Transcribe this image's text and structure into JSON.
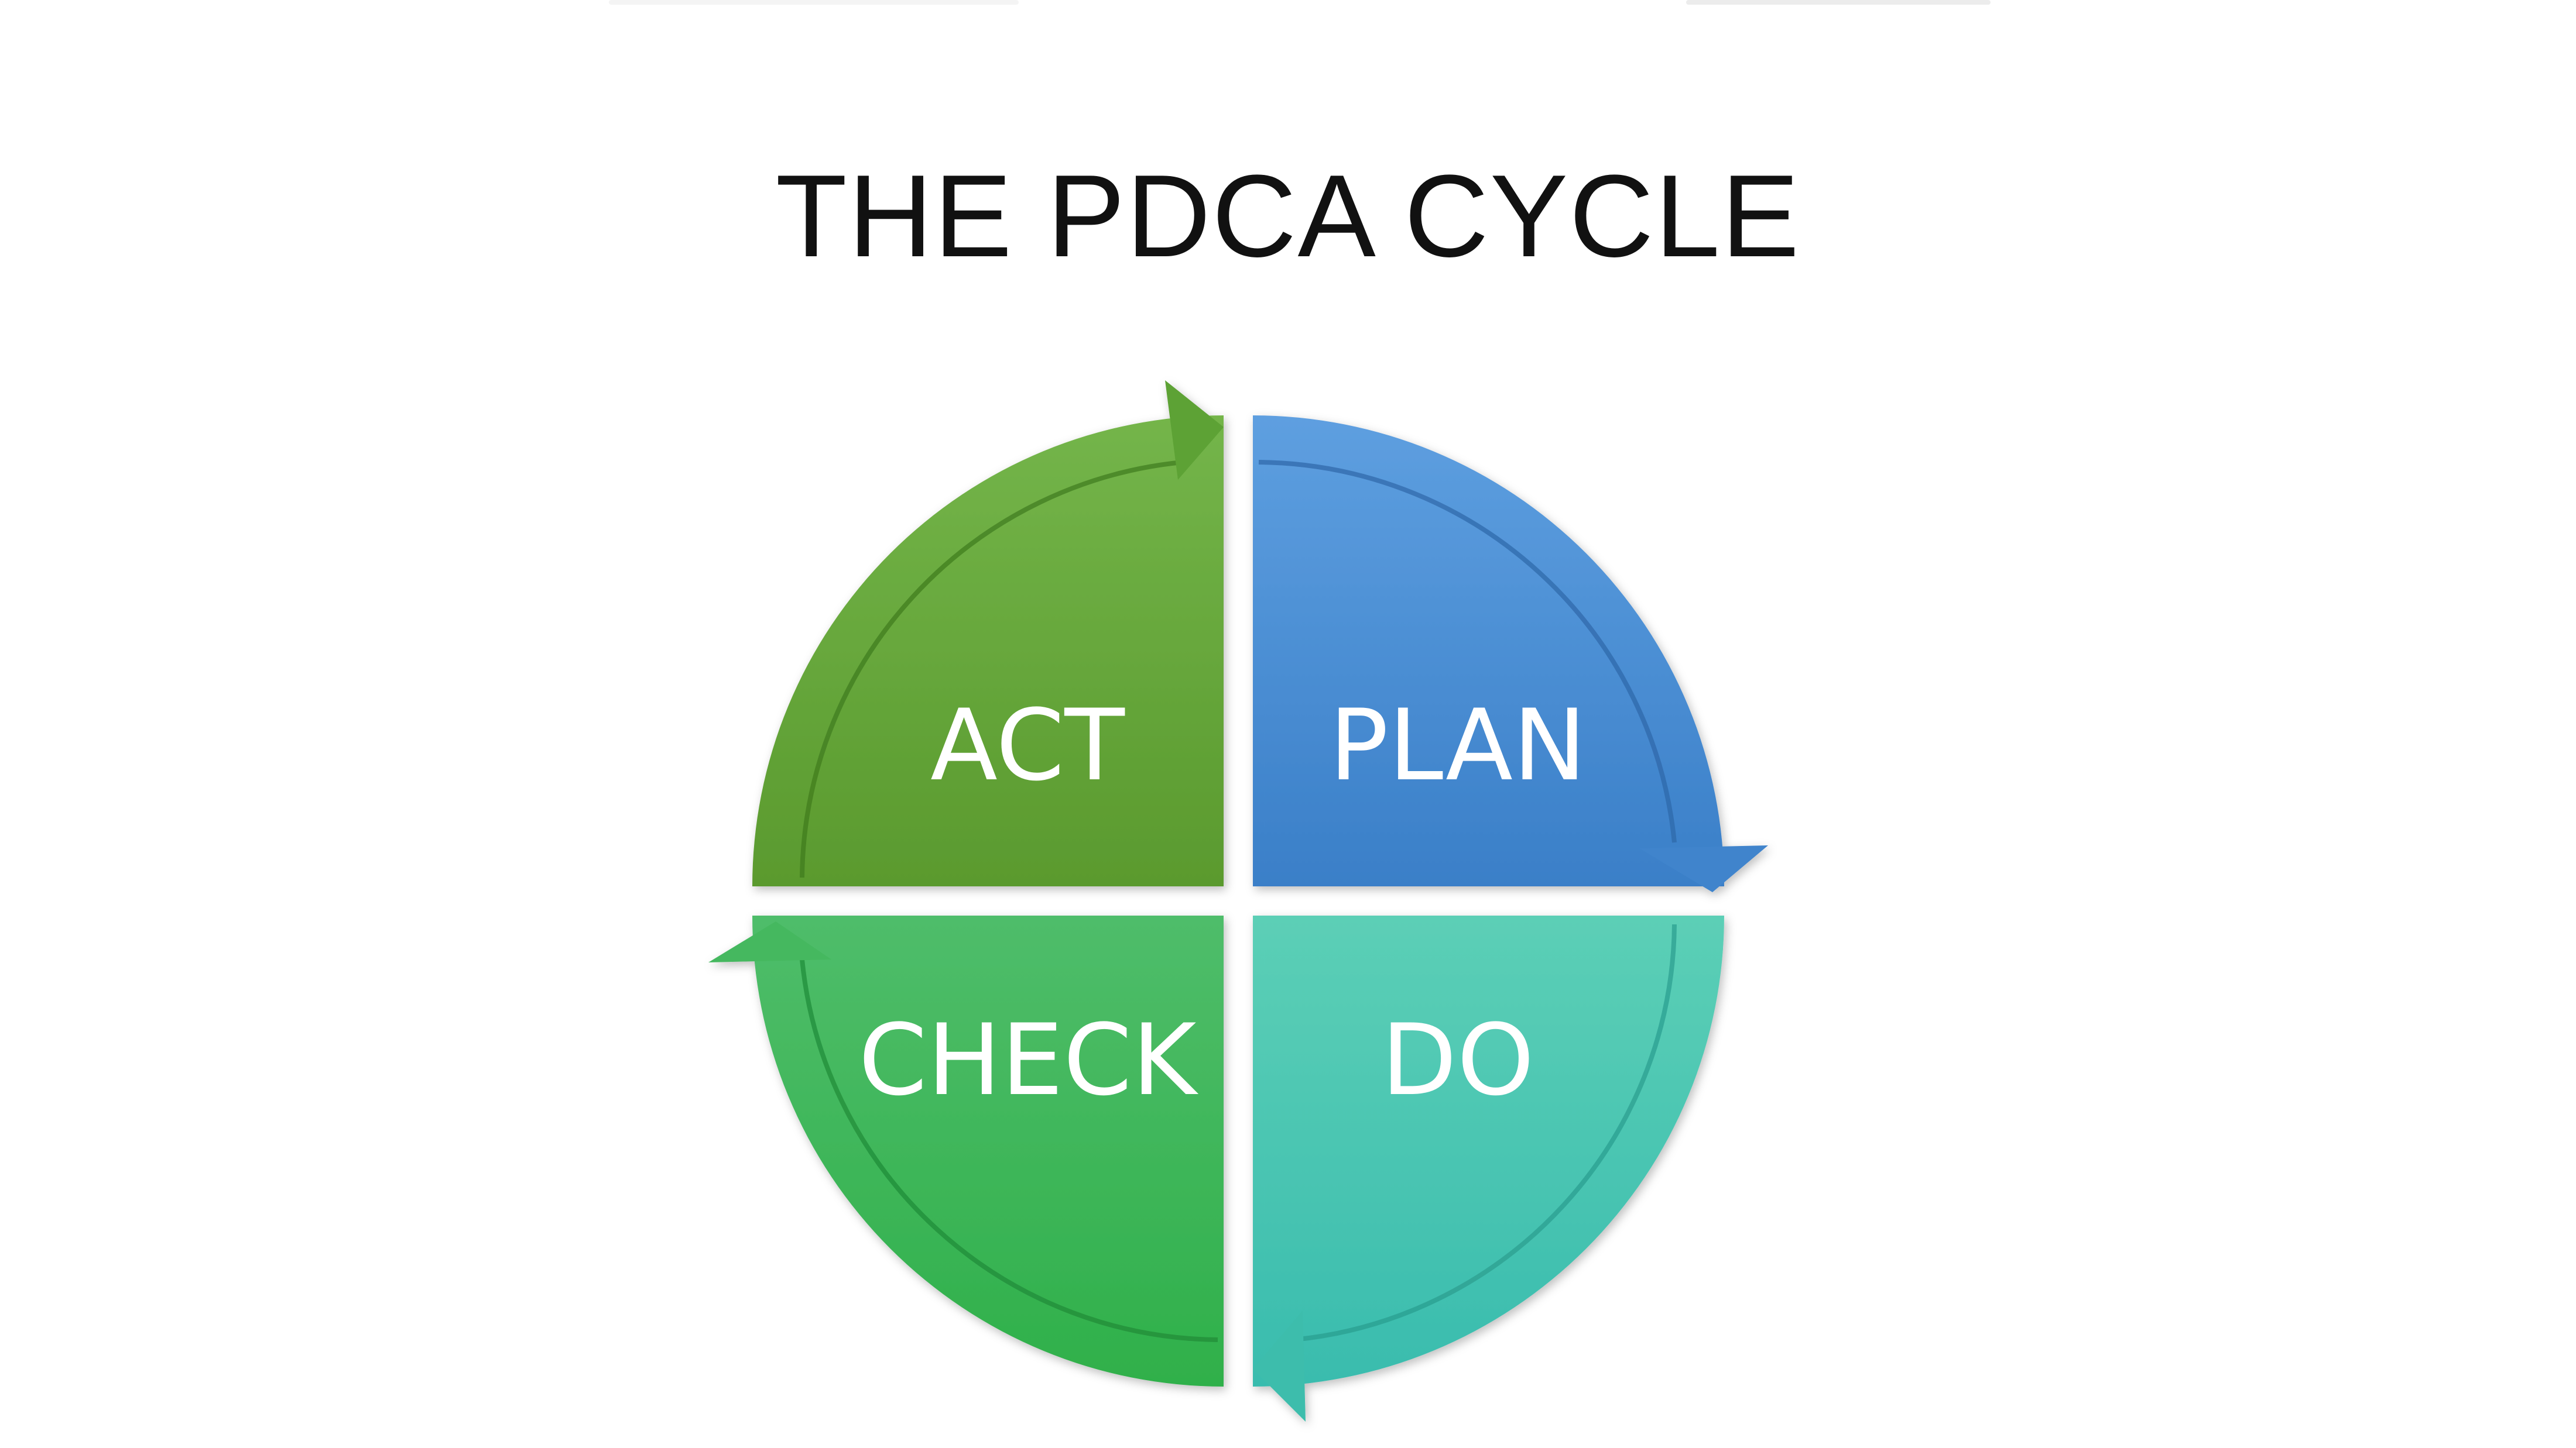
{
  "title": "THE PDCA CYCLE",
  "quadrants": {
    "act": {
      "label": "ACT",
      "color": "#62a43a"
    },
    "plan": {
      "label": "PLAN",
      "color": "#4a8fd6"
    },
    "check": {
      "label": "CHECK",
      "color": "#3bb55a"
    },
    "do": {
      "label": "DO",
      "color": "#45c4b0"
    }
  },
  "arrow_direction": "clockwise"
}
